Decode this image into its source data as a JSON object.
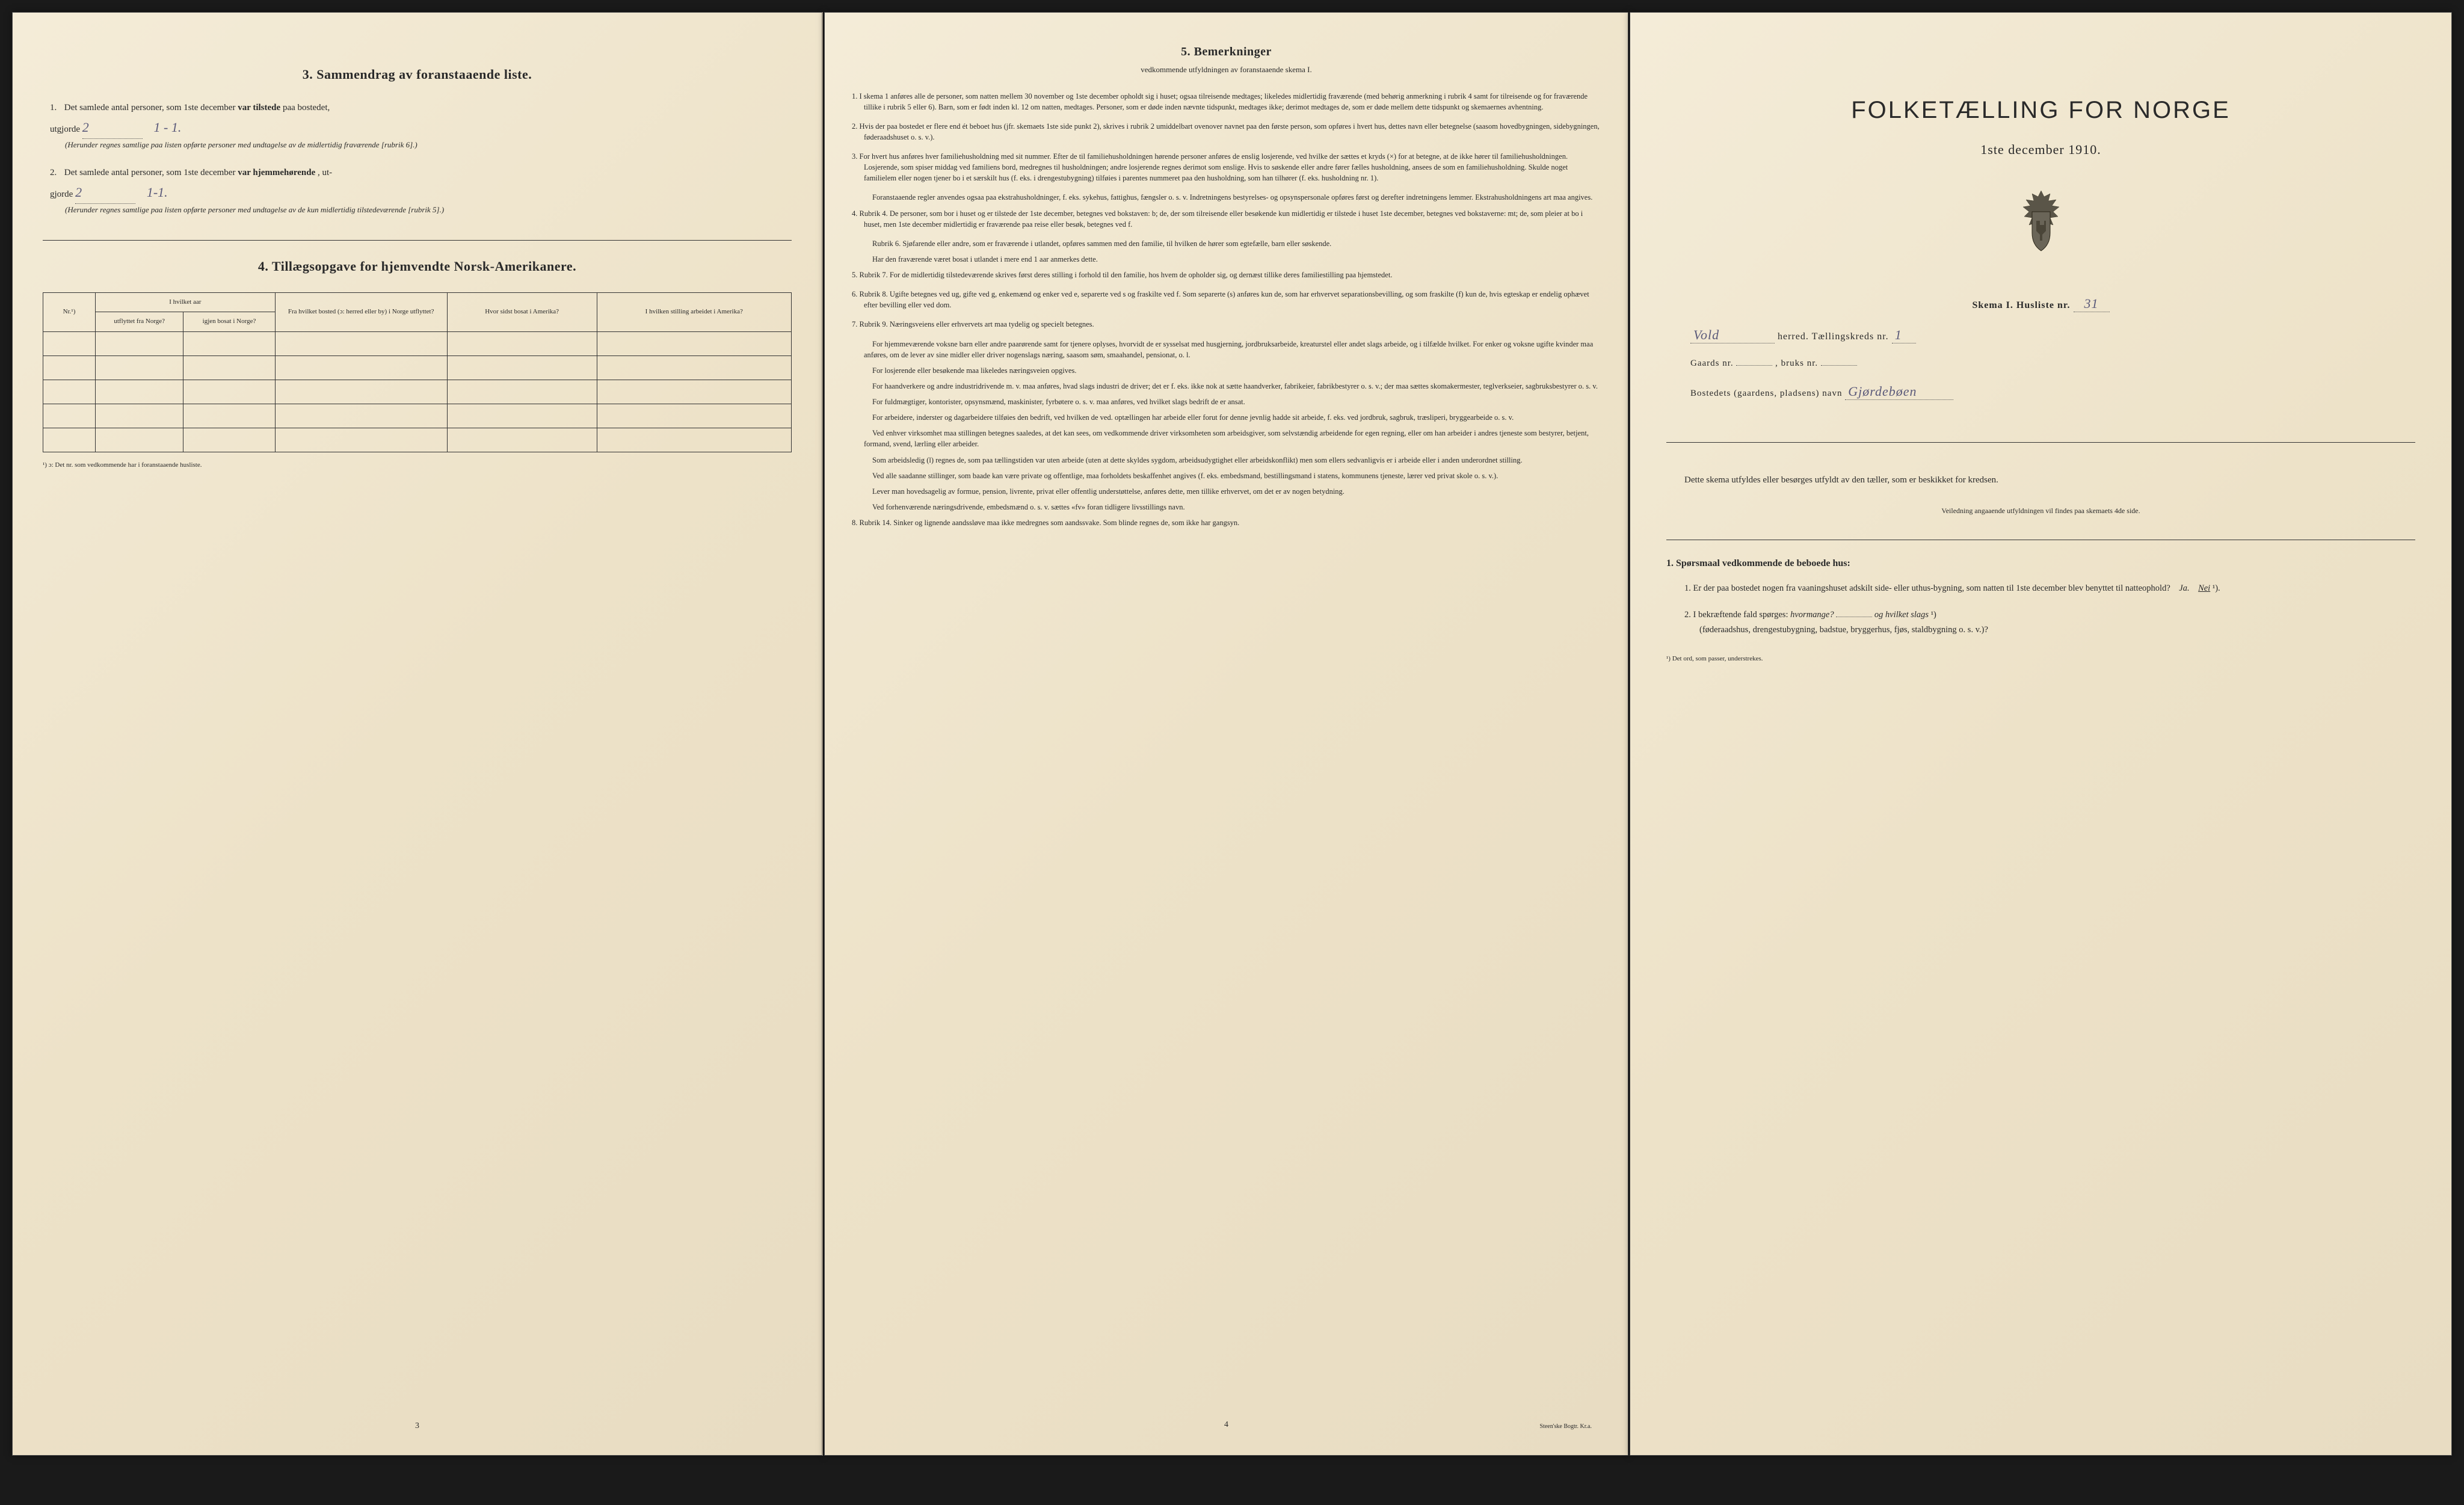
{
  "page3": {
    "section3": {
      "title": "3.   Sammendrag av foranstaaende liste.",
      "item1": {
        "num": "1.",
        "text_a": "Det samlede antal personer, som 1ste december ",
        "text_b": "var tilstede",
        "text_c": " paa bostedet,",
        "utgjorde_label": "utgjorde",
        "value": "2",
        "subvalue": "1 - 1.",
        "note": "(Herunder regnes samtlige paa listen opførte personer med undtagelse av de midlertidig fraværende [rubrik 6].)"
      },
      "item2": {
        "num": "2.",
        "text_a": "Det samlede antal personer, som 1ste december ",
        "text_b": "var hjemmehørende",
        "text_c": ", ut-",
        "gjorde_label": "gjorde",
        "value": "2",
        "subvalue": "1-1.",
        "note": "(Herunder regnes samtlige paa listen opførte personer med undtagelse av de kun midlertidig tilstedeværende [rubrik 5].)"
      }
    },
    "section4": {
      "title": "4.   Tillægsopgave for hjemvendte Norsk-Amerikanere.",
      "headers": {
        "nr": "Nr.¹)",
        "col1": "I hvilket aar utflyttet fra Norge?",
        "col2": "I hvilket aar igjen bosat i Norge?",
        "col3": "Fra hvilket bosted (ɔ: herred eller by) i Norge utflyttet?",
        "col4": "Hvor sidst bosat i Amerika?",
        "col5": "I hvilken stilling arbeidet i Amerika?"
      },
      "footnote": "¹) ɔ: Det nr. som vedkommende har i foranstaaende husliste."
    },
    "page_num": "3"
  },
  "page4": {
    "title": "5.   Bemerkninger",
    "subtitle": "vedkommende utfyldningen av foranstaaende skema I.",
    "items": [
      {
        "num": "1.",
        "text": "I skema 1 anføres alle de personer, som natten mellem 30 november og 1ste december opholdt sig i huset; ogsaa tilreisende medtages; likeledes midlertidig fraværende (med behørig anmerkning i rubrik 4 samt for tilreisende og for fraværende tillike i rubrik 5 eller 6). Barn, som er født inden kl. 12 om natten, medtages. Personer, som er døde inden nævnte tidspunkt, medtages ikke; derimot medtages de, som er døde mellem dette tidspunkt og skemaernes avhentning."
      },
      {
        "num": "2.",
        "text": "Hvis der paa bostedet er flere end ét beboet hus (jfr. skemaets 1ste side punkt 2), skrives i rubrik 2 umiddelbart ovenover navnet paa den første person, som opføres i hvert hus, dettes navn eller betegnelse (saasom hovedbygningen, sidebygningen, føderaadshuset o. s. v.)."
      },
      {
        "num": "3.",
        "text": "For hvert hus anføres hver familiehusholdning med sit nummer. Efter de til familiehusholdningen hørende personer anføres de enslig losjerende, ved hvilke der sættes et kryds (×) for at betegne, at de ikke hører til familiehusholdningen. Losjerende, som spiser middag ved familiens bord, medregnes til husholdningen; andre losjerende regnes derimot som enslige. Hvis to søskende eller andre fører fælles husholdning, ansees de som en familiehusholdning. Skulde noget familielem eller nogen tjener bo i et særskilt hus (f. eks. i drengestubygning) tilføies i parentes nummeret paa den husholdning, som han tilhører (f. eks. husholdning nr. 1)."
      },
      {
        "num": "",
        "text": "Foranstaaende regler anvendes ogsaa paa ekstrahusholdninger, f. eks. sykehus, fattighus, fængsler o. s. v. Indretningens bestyrelses- og opsynspersonale opføres først og derefter indretningens lemmer. Ekstrahusholdningens art maa angives."
      },
      {
        "num": "4.",
        "text": "Rubrik 4. De personer, som bor i huset og er tilstede der 1ste december, betegnes ved bokstaven: b; de, der som tilreisende eller besøkende kun midlertidig er tilstede i huset 1ste december, betegnes ved bokstaverne: mt; de, som pleier at bo i huset, men 1ste december midlertidig er fraværende paa reise eller besøk, betegnes ved f."
      },
      {
        "num": "",
        "text": "Rubrik 6. Sjøfarende eller andre, som er fraværende i utlandet, opføres sammen med den familie, til hvilken de hører som egtefælle, barn eller søskende."
      },
      {
        "num": "",
        "text": "Har den fraværende været bosat i utlandet i mere end 1 aar anmerkes dette."
      },
      {
        "num": "5.",
        "text": "Rubrik 7. For de midlertidig tilstedeværende skrives først deres stilling i forhold til den familie, hos hvem de opholder sig, og dernæst tillike deres familiestilling paa hjemstedet."
      },
      {
        "num": "6.",
        "text": "Rubrik 8. Ugifte betegnes ved ug, gifte ved g, enkemænd og enker ved e, separerte ved s og fraskilte ved f. Som separerte (s) anføres kun de, som har erhvervet separationsbevilling, og som fraskilte (f) kun de, hvis egteskap er endelig ophævet efter bevilling eller ved dom."
      },
      {
        "num": "7.",
        "text": "Rubrik 9. Næringsveiens eller erhvervets art maa tydelig og specielt betegnes."
      },
      {
        "num": "",
        "text": "For hjemmeværende voksne barn eller andre paarørende samt for tjenere oplyses, hvorvidt de er sysselsat med husgjerning, jordbruksarbeide, kreaturstel eller andet slags arbeide, og i tilfælde hvilket. For enker og voksne ugifte kvinder maa anføres, om de lever av sine midler eller driver nogenslags næring, saasom søm, smaahandel, pensionat, o. l."
      },
      {
        "num": "",
        "text": "For losjerende eller besøkende maa likeledes næringsveien opgives."
      },
      {
        "num": "",
        "text": "For haandverkere og andre industridrivende m. v. maa anføres, hvad slags industri de driver; det er f. eks. ikke nok at sætte haandverker, fabrikeier, fabrikbestyrer o. s. v.; der maa sættes skomakermester, teglverkseier, sagbruksbestyrer o. s. v."
      },
      {
        "num": "",
        "text": "For fuldmægtiger, kontorister, opsynsmænd, maskinister, fyrbøtere o. s. v. maa anføres, ved hvilket slags bedrift de er ansat."
      },
      {
        "num": "",
        "text": "For arbeidere, inderster og dagarbeidere tilføies den bedrift, ved hvilken de ved. optællingen har arbeide eller forut for denne jevnlig hadde sit arbeide, f. eks. ved jordbruk, sagbruk, træsliperi, bryggearbeide o. s. v."
      },
      {
        "num": "",
        "text": "Ved enhver virksomhet maa stillingen betegnes saaledes, at det kan sees, om vedkommende driver virksomheten som arbeidsgiver, som selvstændig arbeidende for egen regning, eller om han arbeider i andres tjeneste som bestyrer, betjent, formand, svend, lærling eller arbeider."
      },
      {
        "num": "",
        "text": "Som arbeidsledig (l) regnes de, som paa tællingstiden var uten arbeide (uten at dette skyldes sygdom, arbeidsudygtighet eller arbeidskonflikt) men som ellers sedvanligvis er i arbeide eller i anden underordnet stilling."
      },
      {
        "num": "",
        "text": "Ved alle saadanne stillinger, som baade kan være private og offentlige, maa forholdets beskaffenhet angives (f. eks. embedsmand, bestillingsmand i statens, kommunens tjeneste, lærer ved privat skole o. s. v.)."
      },
      {
        "num": "",
        "text": "Lever man hovedsagelig av formue, pension, livrente, privat eller offentlig understøttelse, anføres dette, men tillike erhvervet, om det er av nogen betydning."
      },
      {
        "num": "",
        "text": "Ved forhenværende næringsdrivende, embedsmænd o. s. v. sættes «fv» foran tidligere livsstillings navn."
      },
      {
        "num": "8.",
        "text": "Rubrik 14. Sinker og lignende aandssløve maa ikke medregnes som aandssvake. Som blinde regnes de, som ikke har gangsyn."
      }
    ],
    "page_num": "4",
    "printer": "Steen'ske Bogtr. Kr.a."
  },
  "page_right": {
    "main_title": "FOLKETÆLLING FOR NORGE",
    "date": "1ste december 1910.",
    "skema_label": "Skema I.   Husliste nr.",
    "skema_value": "31",
    "herred_value": "Vold",
    "herred_label": "herred.   Tællingskreds nr.",
    "kreds_value": "1",
    "gaards_label": "Gaards nr.",
    "bruks_label": ", bruks nr.",
    "bosted_label": "Bostedets (gaardens, pladsens) navn",
    "bosted_value": "Gjørdebøen",
    "description": "Dette skema utfyldes eller besørges utfyldt av den tæller, som er beskikket for kredsen.",
    "veiledning": "Veiledning angaaende utfyldningen vil findes paa skemaets 4de side.",
    "questions_title": "1. Spørsmaal vedkommende de beboede hus:",
    "q1": {
      "num": "1.",
      "text": "Er der paa bostedet nogen fra vaaningshuset adskilt side- eller uthus-bygning, som natten til 1ste december blev benyttet til natteophold?",
      "ja": "Ja.",
      "nei": "Nei",
      "sup": "¹)."
    },
    "q2": {
      "num": "2.",
      "text_a": "I bekræftende fald spørges: ",
      "text_b": "hvormange?",
      "text_c": " og hvilket slags",
      "sup": "¹)",
      "text_d": "(føderaadshus, drengestubygning, badstue, bryggerhus, fjøs, staldbygning o. s. v.)?"
    },
    "footnote": "¹) Det ord, som passer, understrekes."
  },
  "colors": {
    "paper": "#ede2c8",
    "paper_light": "#f4ecd8",
    "paper_dark": "#e8dcc2",
    "ink": "#2a2a2a",
    "handwriting": "#5b5a7a",
    "bg": "#1a1a1a"
  }
}
